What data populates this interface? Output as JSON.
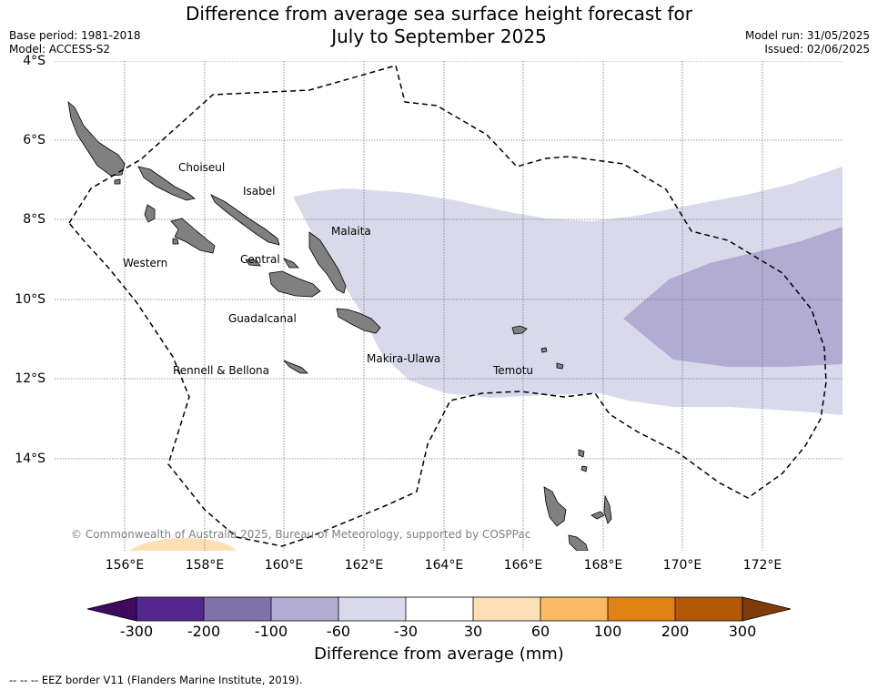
{
  "title_line1": "Difference from average sea surface height forecast for",
  "title_line2": "July to September 2025",
  "base_period": "Base period: 1981-2018",
  "model": "Model: ACCESS-S2",
  "model_run": "Model run: 31/05/2025",
  "issued": "Issued: 02/06/2025",
  "latitude_labels": [
    "4°S",
    "6°S",
    "8°S",
    "10°S",
    "12°S",
    "14°S"
  ],
  "longitude_labels": [
    "156°E",
    "158°E",
    "160°E",
    "162°E",
    "164°E",
    "166°E",
    "168°E",
    "170°E",
    "172°E"
  ],
  "provinces": [
    "Choiseul",
    "Isabel",
    "Malaita",
    "Western",
    "Central",
    "Guadalcanal",
    "Makira-Ulawa",
    "Rennell & Bellona",
    "Temotu"
  ],
  "copyright": "© Commonwealth of Australia 2025, Bureau of Meteorology, supported by COSPPac",
  "colorbar": {
    "tick_labels": [
      "-300",
      "-200",
      "-100",
      "-60",
      "-30",
      "30",
      "60",
      "100",
      "200",
      "300"
    ],
    "colors": [
      "#3f0a60",
      "#54278f",
      "#8073ac",
      "#b2abd2",
      "#d8daeb",
      "#ffffff",
      "#fee0b6",
      "#fdb863",
      "#e08214",
      "#b35806",
      "#7f3b08"
    ],
    "title": "Difference from average (mm)"
  },
  "legend": "--  --  -- EEZ border V11 (Flanders Marine Institute, 2019).",
  "colors": {
    "land": "#808080",
    "anomaly_light": "#d8daeb",
    "anomaly_medium": "#b2abd2",
    "anomaly_positive": "#fee0b6"
  }
}
